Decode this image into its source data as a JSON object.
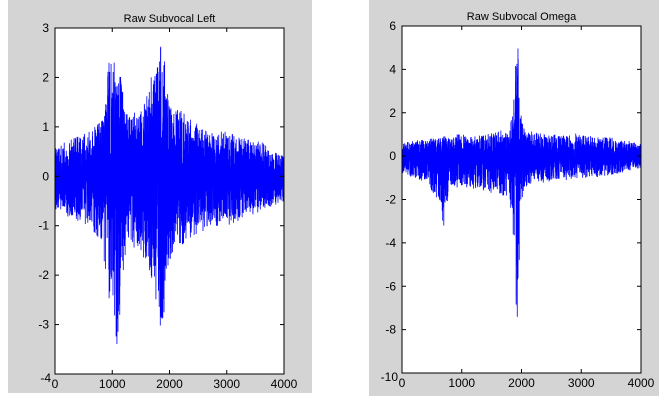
{
  "chart_data": [
    {
      "type": "line",
      "title": "Raw Subvocal Left",
      "xlabel": "",
      "ylabel": "",
      "xlim": [
        0,
        4000
      ],
      "ylim": [
        -4,
        3
      ],
      "xticks": [
        0,
        1000,
        2000,
        3000,
        4000
      ],
      "xtick_labels": [
        "0",
        "1000",
        "2000",
        "3000",
        "4000"
      ],
      "yticks": [
        -4,
        -3,
        -2,
        -1,
        0,
        1,
        2,
        3
      ],
      "ytick_labels": [
        "-4",
        "-3",
        "-2",
        "-1",
        "0",
        "1",
        "2",
        "3"
      ],
      "grid": false,
      "color": "#0000ff",
      "envelope": {
        "x": [
          0,
          200,
          400,
          600,
          800,
          900,
          950,
          1000,
          1050,
          1100,
          1150,
          1200,
          1300,
          1400,
          1500,
          1600,
          1700,
          1800,
          1850,
          1900,
          1950,
          2000,
          2100,
          2200,
          2400,
          2600,
          2800,
          3000,
          3200,
          3400,
          3600,
          3800,
          4000
        ],
        "upper": [
          0.6,
          0.7,
          0.8,
          0.9,
          1.1,
          1.6,
          2.85,
          2.1,
          2.6,
          1.8,
          2.4,
          1.5,
          1.2,
          1.3,
          1.4,
          1.6,
          2.1,
          2.4,
          2.9,
          2.6,
          1.9,
          1.5,
          1.3,
          1.4,
          1.1,
          1.0,
          0.9,
          0.9,
          0.8,
          0.8,
          0.7,
          0.5,
          0.4
        ],
        "lower": [
          -0.7,
          -0.8,
          -0.9,
          -1.0,
          -1.3,
          -2.0,
          -2.6,
          -2.1,
          -3.8,
          -3.3,
          -2.5,
          -1.8,
          -1.4,
          -1.5,
          -1.6,
          -1.8,
          -2.3,
          -2.6,
          -3.4,
          -2.8,
          -2.2,
          -1.7,
          -1.5,
          -1.4,
          -1.2,
          -1.1,
          -1.0,
          -1.0,
          -0.9,
          -0.8,
          -0.7,
          -0.6,
          -0.5
        ]
      }
    },
    {
      "type": "line",
      "title": "Raw Subvocal Omega",
      "xlabel": "",
      "ylabel": "",
      "xlim": [
        0,
        4000
      ],
      "ylim": [
        -10,
        6
      ],
      "xticks": [
        0,
        1000,
        2000,
        3000,
        4000
      ],
      "xtick_labels": [
        "0",
        "1000",
        "2000",
        "3000",
        "4000"
      ],
      "yticks": [
        -10,
        -8,
        -6,
        -4,
        -2,
        0,
        2,
        4,
        6
      ],
      "ytick_labels": [
        "-10",
        "-8",
        "-6",
        "-4",
        "-2",
        "0",
        "2",
        "4",
        "6"
      ],
      "grid": false,
      "color": "#0000ff",
      "envelope": {
        "x": [
          0,
          200,
          400,
          600,
          700,
          800,
          1000,
          1200,
          1400,
          1600,
          1800,
          1850,
          1900,
          1920,
          1950,
          1980,
          2000,
          2050,
          2100,
          2200,
          2400,
          2600,
          2800,
          3000,
          3200,
          3400,
          3600,
          3800,
          4000
        ],
        "upper": [
          0.6,
          0.7,
          0.8,
          0.9,
          0.9,
          1.0,
          1.0,
          0.9,
          1.0,
          1.1,
          1.4,
          2.0,
          5.0,
          5.8,
          4.6,
          2.5,
          1.6,
          1.3,
          1.2,
          1.1,
          1.0,
          1.0,
          1.1,
          1.0,
          0.9,
          0.9,
          0.8,
          0.7,
          0.6
        ],
        "lower": [
          -0.8,
          -1.0,
          -1.2,
          -2.0,
          -3.2,
          -1.5,
          -1.4,
          -1.5,
          -1.6,
          -1.8,
          -2.0,
          -3.0,
          -5.8,
          -8.3,
          -6.0,
          -3.5,
          -2.0,
          -1.6,
          -1.4,
          -1.3,
          -1.2,
          -1.1,
          -1.1,
          -1.0,
          -1.0,
          -0.9,
          -0.8,
          -0.7,
          -0.6
        ]
      }
    }
  ]
}
